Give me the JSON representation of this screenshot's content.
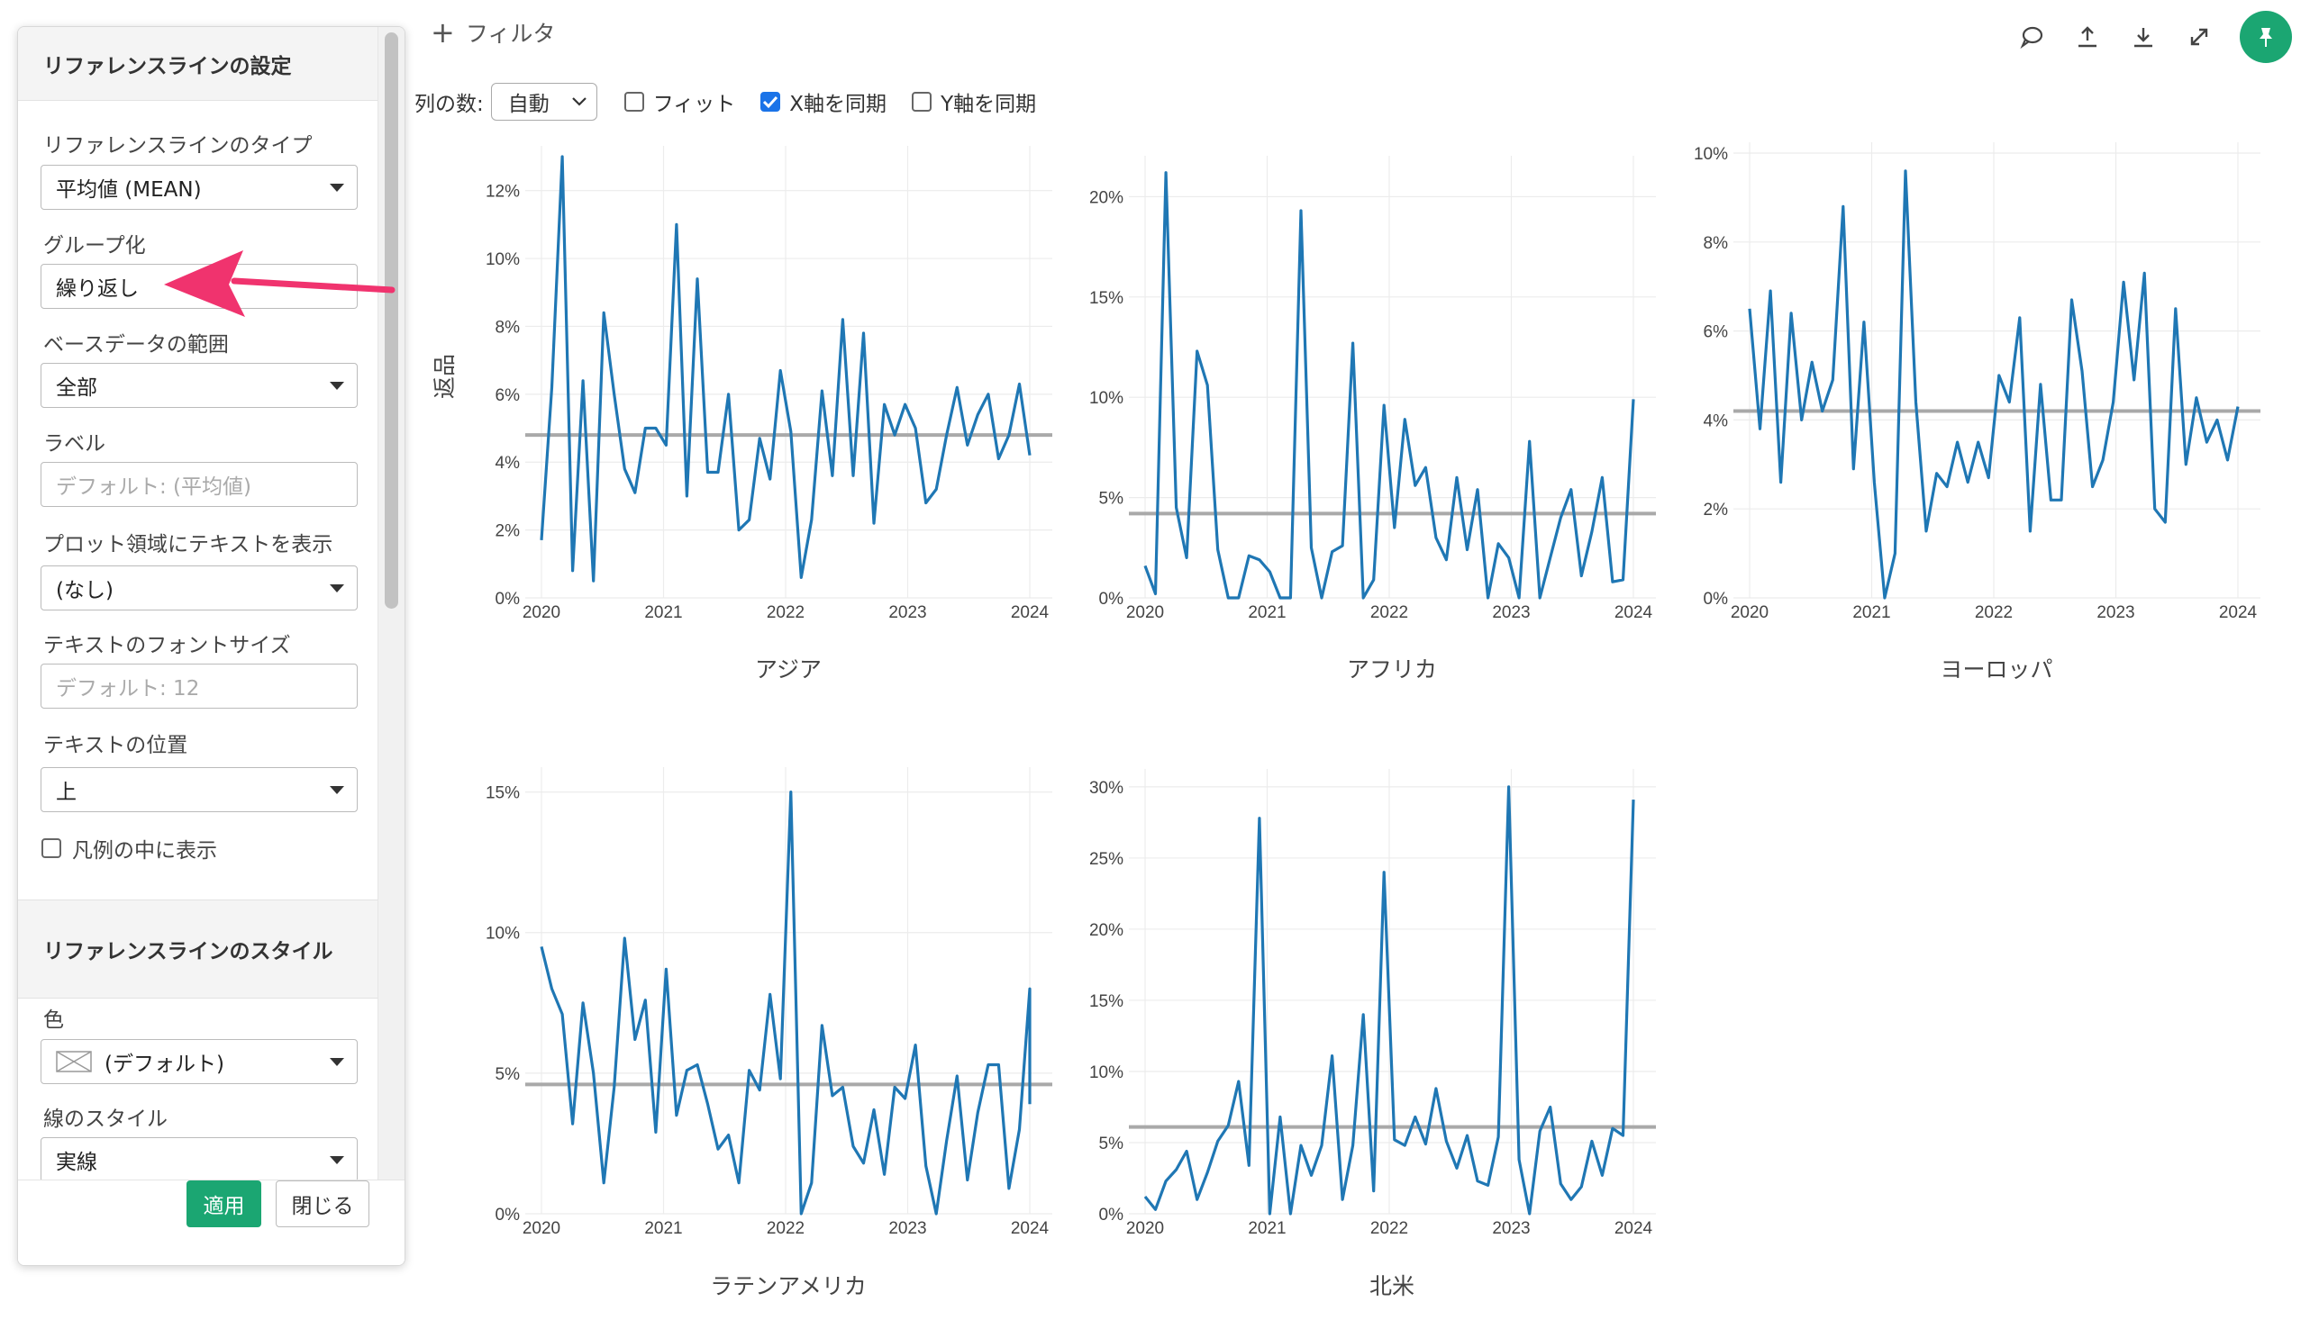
{
  "topbar": {
    "filter_label": "フィルタ",
    "icons": [
      "comment-icon",
      "upload-icon",
      "download-icon",
      "expand-icon",
      "pin-icon"
    ]
  },
  "toolbar": {
    "columns_label": "列の数:",
    "columns_value": "自動",
    "fit_label": "フィット",
    "fit_checked": false,
    "sync_x_label": "X軸を同期",
    "sync_x_checked": true,
    "sync_y_label": "Y軸を同期",
    "sync_y_checked": false
  },
  "panel": {
    "title": "リファレンスラインの設定",
    "fields": {
      "type_label": "リファレンスラインのタイプ",
      "type_value": "平均値 (MEAN)",
      "group_label": "グループ化",
      "group_value": "繰り返し",
      "base_label": "ベースデータの範囲",
      "base_value": "全部",
      "label_label": "ラベル",
      "label_placeholder": "デフォルト: (平均値)",
      "show_text_label": "プロット領域にテキストを表示",
      "show_text_value": "(なし)",
      "font_size_label": "テキストのフォントサイズ",
      "font_size_placeholder": "デフォルト: 12",
      "text_pos_label": "テキストの位置",
      "text_pos_value": "上",
      "legend_label": "凡例の中に表示",
      "legend_checked": false
    },
    "style_title": "リファレンスラインのスタイル",
    "style": {
      "color_label": "色",
      "color_value": "(デフォルト)",
      "line_style_label": "線のスタイル",
      "line_style_value": "実線"
    },
    "apply_label": "適用",
    "close_label": "閉じる"
  },
  "colors": {
    "line": "#1f77b4",
    "reference_line": "#a9a9a9",
    "accent": "#1ba672",
    "arrow": "#f0336e",
    "checkbox": "#1a73e8"
  },
  "chart_data": {
    "type": "line",
    "ylabel": "返品",
    "x_ticks": [
      "2020",
      "2021",
      "2022",
      "2023",
      "2024"
    ],
    "reference_line": "mean",
    "facets": [
      {
        "name": "アジア",
        "ylim": [
          0,
          13
        ],
        "y_ticks": [
          "0%",
          "2%",
          "4%",
          "6%",
          "8%",
          "10%",
          "12%"
        ],
        "y_tick_values": [
          0,
          2,
          4,
          6,
          8,
          10,
          12
        ],
        "mean": 4.8,
        "values": [
          1.7,
          6.2,
          13.0,
          0.8,
          6.4,
          0.5,
          8.4,
          6.0,
          3.8,
          3.1,
          5.0,
          5.0,
          4.5,
          11.0,
          3.0,
          9.4,
          3.7,
          3.7,
          6.0,
          2.0,
          2.3,
          4.7,
          3.5,
          6.7,
          4.9,
          0.6,
          2.3,
          6.1,
          3.6,
          8.2,
          3.6,
          7.8,
          2.2,
          5.7,
          4.8,
          5.7,
          5.0,
          2.8,
          3.2,
          4.8,
          6.2,
          4.5,
          5.4,
          6.0,
          4.1,
          4.8,
          6.3,
          4.2
        ]
      },
      {
        "name": "アフリカ",
        "ylim": [
          0,
          21.5
        ],
        "y_ticks": [
          "0%",
          "5%",
          "10%",
          "15%",
          "20%"
        ],
        "y_tick_values": [
          0,
          5,
          10,
          15,
          20
        ],
        "mean": 4.2,
        "values": [
          1.6,
          0.2,
          21.2,
          4.5,
          2.0,
          12.3,
          10.6,
          2.4,
          0.0,
          0.0,
          2.1,
          1.9,
          1.3,
          0.0,
          0.0,
          19.3,
          2.5,
          0.0,
          2.3,
          2.6,
          12.7,
          0.0,
          0.9,
          9.6,
          3.5,
          8.9,
          5.6,
          6.5,
          3.0,
          1.9,
          6.0,
          2.4,
          5.4,
          0.0,
          2.7,
          2.0,
          0.0,
          7.8,
          0.0,
          2.0,
          4.0,
          5.4,
          1.1,
          3.3,
          6.0,
          0.8,
          0.9,
          9.9
        ]
      },
      {
        "name": "ヨーロッパ",
        "ylim": [
          0,
          10
        ],
        "y_ticks": [
          "0%",
          "2%",
          "4%",
          "6%",
          "8%",
          "10%"
        ],
        "y_tick_values": [
          0,
          2,
          4,
          6,
          8,
          10
        ],
        "mean": 4.2,
        "values": [
          6.5,
          3.8,
          6.9,
          2.6,
          6.4,
          4.0,
          5.3,
          4.2,
          4.9,
          8.8,
          2.9,
          6.2,
          2.6,
          0.0,
          1.0,
          9.6,
          4.4,
          1.5,
          2.8,
          2.5,
          3.5,
          2.6,
          3.5,
          2.7,
          5.0,
          4.4,
          6.3,
          1.5,
          4.8,
          2.2,
          2.2,
          6.7,
          5.1,
          2.5,
          3.1,
          4.4,
          7.1,
          4.9,
          7.3,
          2.0,
          1.7,
          6.5,
          3.0,
          4.5,
          3.5,
          4.0,
          3.1,
          4.3
        ]
      },
      {
        "name": "ラテンアメリカ",
        "ylim": [
          0,
          15.5
        ],
        "y_ticks": [
          "0%",
          "5%",
          "10%",
          "15%"
        ],
        "y_tick_values": [
          0,
          5,
          10,
          15
        ],
        "mean": 4.6,
        "values": [
          9.5,
          8.0,
          7.1,
          3.2,
          7.5,
          5.0,
          1.1,
          4.5,
          9.8,
          6.2,
          7.6,
          2.9,
          8.7,
          3.5,
          5.1,
          5.3,
          3.9,
          2.3,
          2.8,
          1.1,
          5.1,
          4.4,
          7.8,
          4.8,
          15.0,
          0.0,
          1.1,
          6.7,
          4.2,
          4.5,
          2.4,
          1.8,
          3.7,
          1.4,
          4.5,
          4.1,
          6.0,
          1.7,
          0.0,
          2.6,
          4.9,
          1.2,
          3.6,
          5.3,
          5.3,
          0.9,
          3.0,
          8.0,
          5.6,
          3.9
        ]
      },
      {
        "name": "北米",
        "ylim": [
          0,
          30.5
        ],
        "y_ticks": [
          "0%",
          "5%",
          "10%",
          "15%",
          "20%",
          "25%",
          "30%"
        ],
        "y_tick_values": [
          0,
          5,
          10,
          15,
          20,
          25,
          30
        ],
        "mean": 6.1,
        "values": [
          1.2,
          0.3,
          2.3,
          3.1,
          4.4,
          1.0,
          2.9,
          5.1,
          6.2,
          9.3,
          3.4,
          27.8,
          0.0,
          6.8,
          0.0,
          4.8,
          2.7,
          4.8,
          11.1,
          1.0,
          4.8,
          14.0,
          1.6,
          24.0,
          5.2,
          4.8,
          6.8,
          4.9,
          8.8,
          5.1,
          3.2,
          5.5,
          2.3,
          2.0,
          5.4,
          30.0,
          3.8,
          0.0,
          5.8,
          7.5,
          2.1,
          1.0,
          1.9,
          5.1,
          2.7,
          6.0,
          5.5,
          29.1
        ]
      }
    ]
  }
}
